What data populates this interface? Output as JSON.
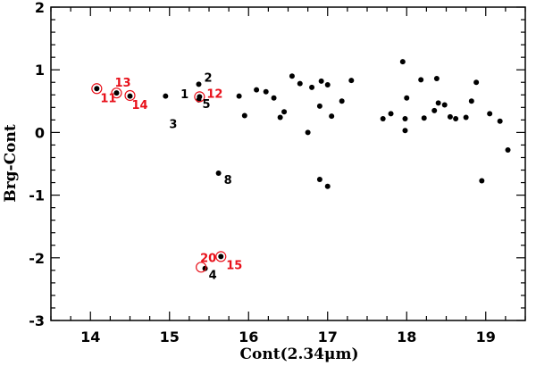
{
  "chart_data": {
    "type": "scatter",
    "xlabel": "Cont(2.34μm)",
    "ylabel": "Brg-Cont",
    "xlim": [
      13.5,
      19.5
    ],
    "ylim": [
      -3,
      2
    ],
    "xticks": [
      "14",
      "15",
      "16",
      "17",
      "18",
      "19"
    ],
    "yticks": [
      "-3",
      "-2",
      "-1",
      "0",
      "1",
      "2"
    ],
    "grid": false,
    "highlight_color": "#e8101a",
    "point_color": "#000000",
    "labeled_points": [
      {
        "label": "1",
        "x": 15.05,
        "y": 0.56,
        "highlighted": false
      },
      {
        "label": "2",
        "x": 15.37,
        "y": 0.77,
        "highlighted": false
      },
      {
        "label": "3",
        "x": 14.95,
        "y": 0.27,
        "highlighted": false
      },
      {
        "label": "4",
        "x": 15.45,
        "y": -2.17,
        "highlighted": false
      },
      {
        "label": "5",
        "x": 15.37,
        "y": 0.55,
        "highlighted": false
      },
      {
        "label": "8",
        "x": 15.62,
        "y": -0.65,
        "highlighted": false
      },
      {
        "label": "11",
        "x": 14.08,
        "y": 0.7,
        "highlighted": true
      },
      {
        "label": "12",
        "x": 15.38,
        "y": 0.57,
        "highlighted": true
      },
      {
        "label": "13",
        "x": 14.33,
        "y": 0.63,
        "highlighted": true
      },
      {
        "label": "14",
        "x": 14.5,
        "y": 0.59,
        "highlighted": true
      },
      {
        "label": "15",
        "x": 15.65,
        "y": -1.98,
        "highlighted": true
      },
      {
        "label": "20",
        "x": 15.4,
        "y": -2.15,
        "highlighted": true
      }
    ],
    "points": [
      {
        "x": 14.95,
        "y": 0.58
      },
      {
        "x": 15.88,
        "y": 0.58
      },
      {
        "x": 15.95,
        "y": 0.27
      },
      {
        "x": 16.1,
        "y": 0.68
      },
      {
        "x": 16.22,
        "y": 0.65
      },
      {
        "x": 16.32,
        "y": 0.55
      },
      {
        "x": 16.4,
        "y": 0.24
      },
      {
        "x": 16.45,
        "y": 0.33
      },
      {
        "x": 16.55,
        "y": 0.9
      },
      {
        "x": 16.65,
        "y": 0.78
      },
      {
        "x": 16.75,
        "y": 0.0
      },
      {
        "x": 16.8,
        "y": 0.72
      },
      {
        "x": 16.9,
        "y": 0.42
      },
      {
        "x": 16.92,
        "y": 0.82
      },
      {
        "x": 16.9,
        "y": -0.75
      },
      {
        "x": 17.0,
        "y": -0.86
      },
      {
        "x": 17.0,
        "y": 0.76
      },
      {
        "x": 17.05,
        "y": 0.26
      },
      {
        "x": 17.18,
        "y": 0.5
      },
      {
        "x": 17.3,
        "y": 0.83
      },
      {
        "x": 17.7,
        "y": 0.22
      },
      {
        "x": 17.8,
        "y": 0.3
      },
      {
        "x": 17.95,
        "y": 1.13
      },
      {
        "x": 17.98,
        "y": 0.22
      },
      {
        "x": 18.0,
        "y": 0.55
      },
      {
        "x": 17.98,
        "y": 0.03
      },
      {
        "x": 18.18,
        "y": 0.84
      },
      {
        "x": 18.22,
        "y": 0.23
      },
      {
        "x": 18.35,
        "y": 0.35
      },
      {
        "x": 18.38,
        "y": 0.86
      },
      {
        "x": 18.4,
        "y": 0.47
      },
      {
        "x": 18.48,
        "y": 0.44
      },
      {
        "x": 18.55,
        "y": 0.25
      },
      {
        "x": 18.62,
        "y": 0.22
      },
      {
        "x": 18.75,
        "y": 0.24
      },
      {
        "x": 18.82,
        "y": 0.5
      },
      {
        "x": 18.88,
        "y": 0.8
      },
      {
        "x": 18.95,
        "y": -0.77
      },
      {
        "x": 19.05,
        "y": 0.3
      },
      {
        "x": 19.18,
        "y": 0.18
      },
      {
        "x": 19.28,
        "y": -0.28
      },
      {
        "x": 14.5,
        "y": 0.58
      },
      {
        "x": 14.33,
        "y": 0.63
      },
      {
        "x": 14.08,
        "y": 0.7
      },
      {
        "x": 15.38,
        "y": 0.57
      },
      {
        "x": 15.45,
        "y": -2.17
      },
      {
        "x": 15.65,
        "y": -1.98
      },
      {
        "x": 15.37,
        "y": 0.77
      },
      {
        "x": 15.37,
        "y": 0.52
      },
      {
        "x": 15.62,
        "y": -0.65
      }
    ]
  }
}
